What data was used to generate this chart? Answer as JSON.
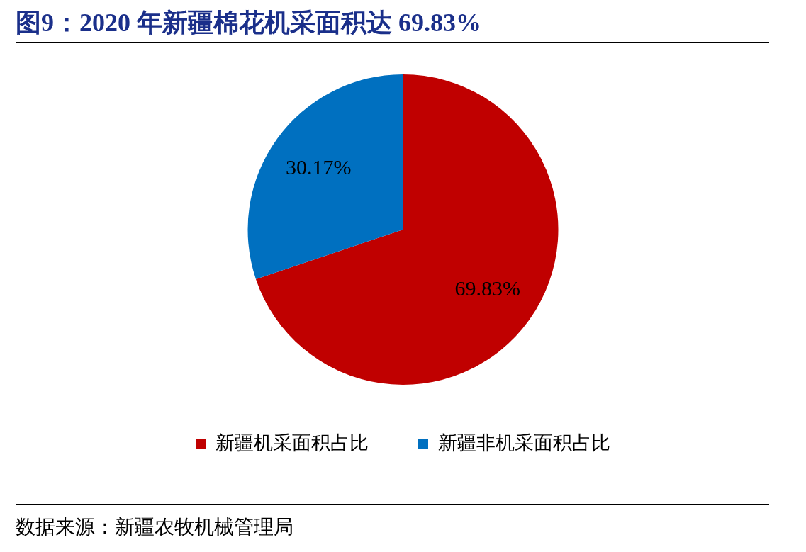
{
  "chart_data": {
    "type": "pie",
    "title": "图9：2020 年新疆棉花机采面积达 69.83%",
    "categories": [
      "新疆机采面积占比",
      "新疆非机采面积占比"
    ],
    "values": [
      69.83,
      30.17
    ],
    "colors": [
      "#c00000",
      "#0070c0"
    ],
    "value_labels": [
      "69.83%",
      "30.17%"
    ],
    "legend": "bottom",
    "annotations": [
      "数据来源：新疆农牧机械管理局"
    ]
  }
}
